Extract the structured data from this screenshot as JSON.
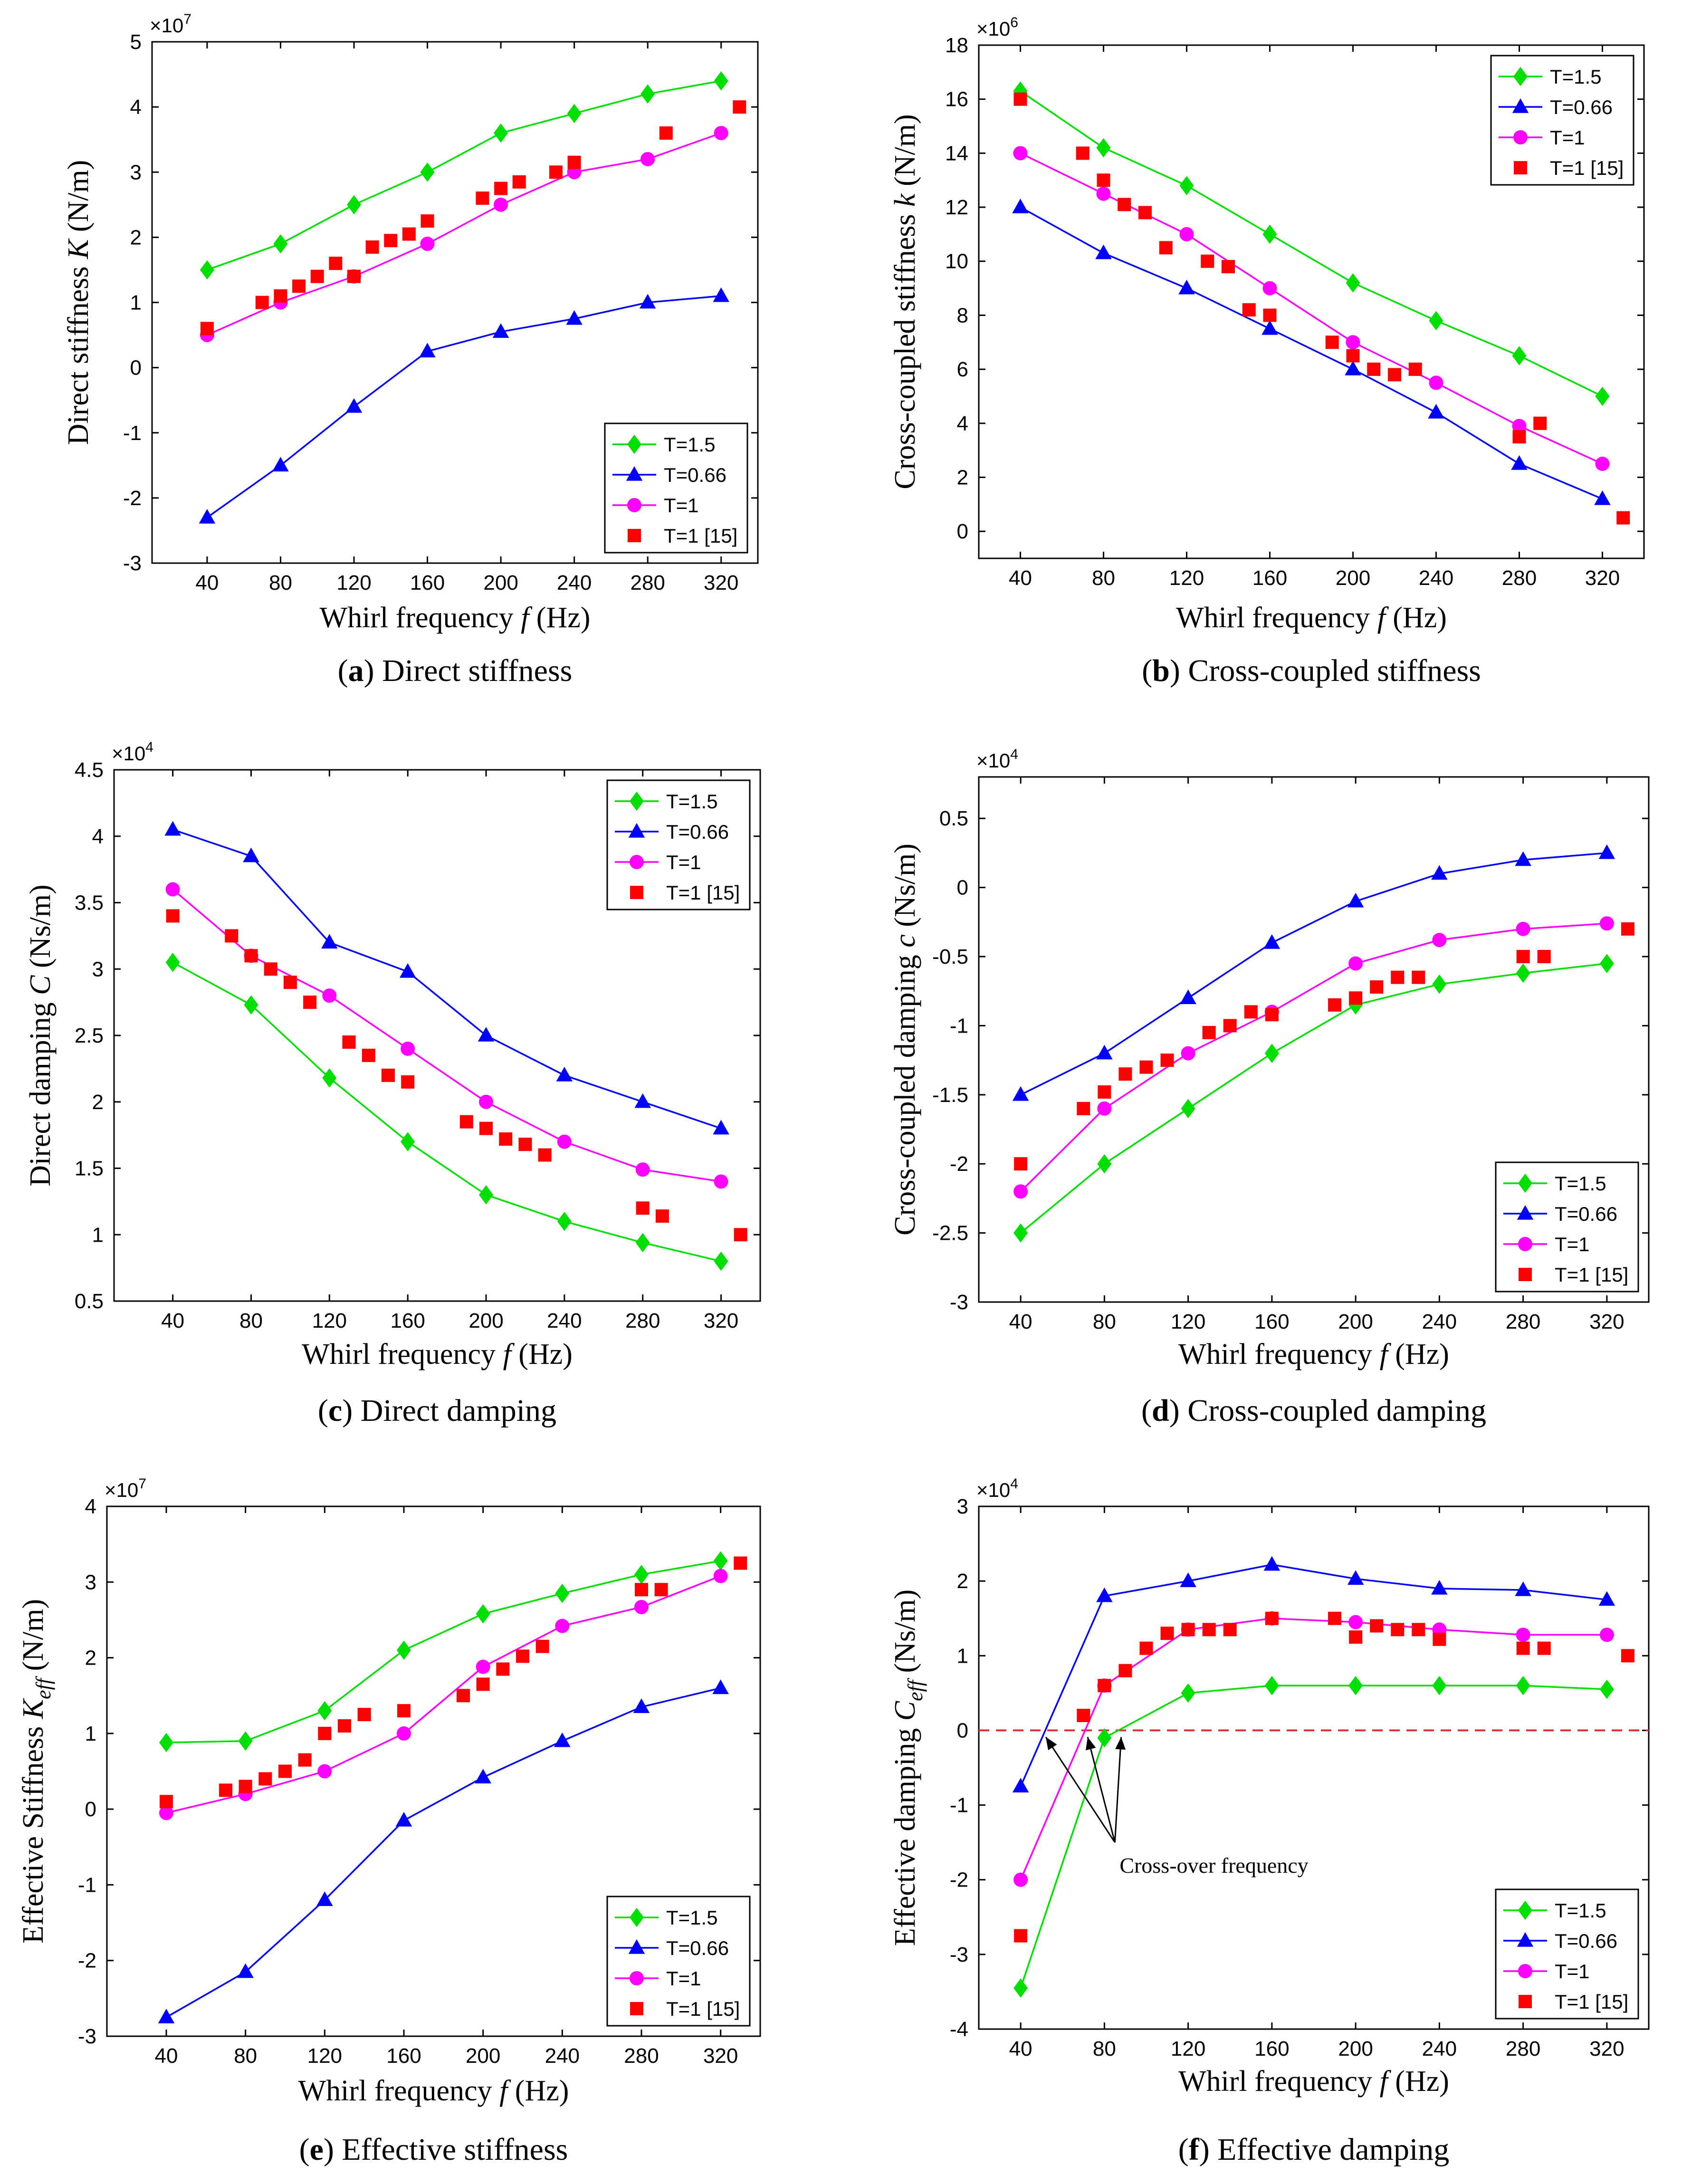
{
  "chart_data": [
    {
      "id": "a",
      "type": "line",
      "caption_letter": "a",
      "caption_title": "Direct stiffness",
      "xlabel_main": "Whirl frequency ",
      "xlabel_italic": "f",
      "xlabel_unit": " (Hz)",
      "ylabel_main": "Direct stiffness ",
      "ylabel_italic": "K",
      "ylabel_sub": "",
      "ylabel_unit": " (N/m)",
      "exp_text": "×10",
      "exp_sup": "7",
      "xticks": [
        "40",
        "80",
        "120",
        "160",
        "200",
        "240",
        "280",
        "320"
      ],
      "yticks": [
        "-3",
        "-2",
        "-1",
        "0",
        "1",
        "2",
        "3",
        "4",
        "5"
      ],
      "ylim": [
        -3,
        5
      ],
      "xlim": [
        10,
        340
      ],
      "legend_position": "bottom-right",
      "series": [
        {
          "name": "T=1.5",
          "x": [
            40,
            80,
            120,
            160,
            200,
            240,
            280,
            320
          ],
          "y": [
            1.5,
            1.9,
            2.5,
            3.0,
            3.6,
            3.9,
            4.2,
            4.4
          ]
        },
        {
          "name": "T=0.66",
          "x": [
            40,
            80,
            120,
            160,
            200,
            240,
            280,
            320
          ],
          "y": [
            -2.3,
            -1.5,
            -0.6,
            0.25,
            0.55,
            0.75,
            1.0,
            1.1
          ]
        },
        {
          "name": "T=1",
          "x": [
            40,
            80,
            120,
            160,
            200,
            240,
            280,
            320
          ],
          "y": [
            0.5,
            1.0,
            1.4,
            1.9,
            2.5,
            3.0,
            3.2,
            3.6
          ]
        },
        {
          "name": "T=1 [15]",
          "x": [
            40,
            70,
            80,
            90,
            100,
            110,
            120,
            130,
            140,
            150,
            160,
            190,
            200,
            210,
            230,
            240,
            290,
            330
          ],
          "y": [
            0.6,
            1.0,
            1.1,
            1.25,
            1.4,
            1.6,
            1.4,
            1.85,
            1.95,
            2.05,
            2.25,
            2.6,
            2.75,
            2.85,
            3.0,
            3.15,
            3.6,
            4.0
          ]
        }
      ]
    },
    {
      "id": "b",
      "type": "line",
      "caption_letter": "b",
      "caption_title": "Cross-coupled stiffness",
      "xlabel_main": "Whirl frequency ",
      "xlabel_italic": "f",
      "xlabel_unit": " (Hz)",
      "ylabel_main": "Cross-coupled stiffness ",
      "ylabel_italic": "k",
      "ylabel_sub": "",
      "ylabel_unit": " (N/m)",
      "exp_text": "×10",
      "exp_sup": "6",
      "xticks": [
        "40",
        "80",
        "120",
        "160",
        "200",
        "240",
        "280",
        "320"
      ],
      "yticks": [
        "0",
        "2",
        "4",
        "6",
        "8",
        "10",
        "12",
        "14",
        "16",
        "18"
      ],
      "ylim": [
        -1,
        18
      ],
      "xlim": [
        20,
        340
      ],
      "legend_position": "top-right",
      "series": [
        {
          "name": "T=1.5",
          "x": [
            40,
            80,
            120,
            160,
            200,
            240,
            280,
            320
          ],
          "y": [
            16.3,
            14.2,
            12.8,
            11.0,
            9.2,
            7.8,
            6.5,
            5.0
          ]
        },
        {
          "name": "T=0.66",
          "x": [
            40,
            80,
            120,
            160,
            200,
            240,
            280,
            320
          ],
          "y": [
            12.0,
            10.3,
            9.0,
            7.5,
            6.0,
            4.4,
            2.5,
            1.2
          ]
        },
        {
          "name": "T=1",
          "x": [
            40,
            80,
            120,
            160,
            200,
            240,
            280,
            320
          ],
          "y": [
            14.0,
            12.5,
            11.0,
            9.0,
            7.0,
            5.5,
            3.9,
            2.5
          ]
        },
        {
          "name": "T=1 [15]",
          "x": [
            40,
            70,
            80,
            90,
            100,
            110,
            130,
            140,
            150,
            160,
            190,
            200,
            210,
            220,
            230,
            280,
            290,
            330
          ],
          "y": [
            16.0,
            14.0,
            13.0,
            12.1,
            11.8,
            10.5,
            10.0,
            9.8,
            8.2,
            8.0,
            7.0,
            6.5,
            6.0,
            5.8,
            6.0,
            3.5,
            4.0,
            0.5
          ]
        }
      ]
    },
    {
      "id": "c",
      "type": "line",
      "caption_letter": "c",
      "caption_title": "Direct damping",
      "xlabel_main": "Whirl frequency ",
      "xlabel_italic": "f",
      "xlabel_unit": " (Hz)",
      "ylabel_main": "Direct damping ",
      "ylabel_italic": "C",
      "ylabel_sub": "",
      "ylabel_unit": " (Ns/m)",
      "exp_text": "×10",
      "exp_sup": "4",
      "xticks": [
        "40",
        "80",
        "120",
        "160",
        "200",
        "240",
        "280",
        "320"
      ],
      "yticks": [
        "0.5",
        "1",
        "1.5",
        "2",
        "2.5",
        "3",
        "3.5",
        "4",
        "4.5"
      ],
      "ylim": [
        0.5,
        4.5
      ],
      "xlim": [
        10,
        340
      ],
      "legend_position": "top-right",
      "series": [
        {
          "name": "T=1.5",
          "x": [
            40,
            80,
            120,
            160,
            200,
            240,
            280,
            320
          ],
          "y": [
            3.05,
            2.73,
            2.18,
            1.7,
            1.3,
            1.1,
            0.94,
            0.8
          ]
        },
        {
          "name": "T=0.66",
          "x": [
            40,
            80,
            120,
            160,
            200,
            240,
            280,
            320
          ],
          "y": [
            4.05,
            3.85,
            3.2,
            2.98,
            2.5,
            2.2,
            2.0,
            1.8
          ]
        },
        {
          "name": "T=1",
          "x": [
            40,
            80,
            120,
            160,
            200,
            240,
            280,
            320
          ],
          "y": [
            3.6,
            3.1,
            2.8,
            2.4,
            2.0,
            1.7,
            1.49,
            1.4
          ]
        },
        {
          "name": "T=1 [15]",
          "x": [
            40,
            70,
            80,
            90,
            100,
            110,
            130,
            140,
            150,
            160,
            190,
            200,
            210,
            220,
            230,
            280,
            290,
            330
          ],
          "y": [
            3.4,
            3.25,
            3.1,
            3.0,
            2.9,
            2.75,
            2.45,
            2.35,
            2.2,
            2.15,
            1.85,
            1.8,
            1.72,
            1.68,
            1.6,
            1.2,
            1.14,
            1.0
          ]
        }
      ]
    },
    {
      "id": "d",
      "type": "line",
      "caption_letter": "d",
      "caption_title": "Cross-coupled damping",
      "xlabel_main": "Whirl frequency ",
      "xlabel_italic": "f",
      "xlabel_unit": " (Hz)",
      "ylabel_main": "Cross-coupled damping ",
      "ylabel_italic": "c",
      "ylabel_sub": "",
      "ylabel_unit": " (Ns/m)",
      "exp_text": "×10",
      "exp_sup": "4",
      "xticks": [
        "40",
        "80",
        "120",
        "160",
        "200",
        "240",
        "280",
        "320"
      ],
      "yticks": [
        "-3",
        "-2.5",
        "-2",
        "-1.5",
        "-1",
        "-0.5",
        "0",
        "0.5"
      ],
      "ylim": [
        -3,
        0.8
      ],
      "xlim": [
        20,
        340
      ],
      "legend_position": "bottom-right",
      "series": [
        {
          "name": "T=1.5",
          "x": [
            40,
            80,
            120,
            160,
            200,
            240,
            280,
            320
          ],
          "y": [
            -2.5,
            -2.0,
            -1.6,
            -1.2,
            -0.85,
            -0.7,
            -0.62,
            -0.55
          ]
        },
        {
          "name": "T=0.66",
          "x": [
            40,
            80,
            120,
            160,
            200,
            240,
            280,
            320
          ],
          "y": [
            -1.5,
            -1.2,
            -0.8,
            -0.4,
            -0.1,
            0.1,
            0.2,
            0.25
          ]
        },
        {
          "name": "T=1",
          "x": [
            40,
            80,
            120,
            160,
            200,
            240,
            280,
            320
          ],
          "y": [
            -2.2,
            -1.6,
            -1.2,
            -0.9,
            -0.55,
            -0.38,
            -0.3,
            -0.26
          ]
        },
        {
          "name": "T=1 [15]",
          "x": [
            40,
            70,
            80,
            90,
            100,
            110,
            130,
            140,
            150,
            160,
            190,
            200,
            210,
            220,
            230,
            280,
            290,
            330
          ],
          "y": [
            -2.0,
            -1.6,
            -1.48,
            -1.35,
            -1.3,
            -1.25,
            -1.05,
            -1.0,
            -0.9,
            -0.92,
            -0.85,
            -0.8,
            -0.72,
            -0.65,
            -0.65,
            -0.5,
            -0.5,
            -0.3
          ]
        }
      ]
    },
    {
      "id": "e",
      "type": "line",
      "caption_letter": "e",
      "caption_title": "Effective stiffness",
      "xlabel_main": "Whirl frequency ",
      "xlabel_italic": "f",
      "xlabel_unit": " (Hz)",
      "ylabel_main": "Effective Stiffness ",
      "ylabel_italic": "K",
      "ylabel_sub": "eff",
      "ylabel_unit": " (N/m)",
      "exp_text": "×10",
      "exp_sup": "7",
      "xticks": [
        "40",
        "80",
        "120",
        "160",
        "200",
        "240",
        "280",
        "320"
      ],
      "yticks": [
        "-3",
        "-2",
        "-1",
        "0",
        "1",
        "2",
        "3",
        "4"
      ],
      "ylim": [
        -3,
        4
      ],
      "xlim": [
        10,
        340
      ],
      "legend_position": "bottom-right",
      "series": [
        {
          "name": "T=1.5",
          "x": [
            40,
            80,
            120,
            160,
            200,
            240,
            280,
            320
          ],
          "y": [
            0.88,
            0.9,
            1.3,
            2.1,
            2.58,
            2.85,
            3.1,
            3.28
          ]
        },
        {
          "name": "T=0.66",
          "x": [
            40,
            80,
            120,
            160,
            200,
            240,
            280,
            320
          ],
          "y": [
            -2.75,
            -2.15,
            -1.2,
            -0.15,
            0.42,
            0.9,
            1.35,
            1.6
          ]
        },
        {
          "name": "T=1",
          "x": [
            40,
            80,
            120,
            160,
            200,
            240,
            280,
            320
          ],
          "y": [
            -0.05,
            0.2,
            0.5,
            1.0,
            1.88,
            2.42,
            2.67,
            3.08
          ]
        },
        {
          "name": "T=1 [15]",
          "x": [
            40,
            70,
            80,
            90,
            100,
            110,
            120,
            130,
            140,
            160,
            190,
            200,
            210,
            220,
            230,
            280,
            290,
            330
          ],
          "y": [
            0.1,
            0.25,
            0.3,
            0.4,
            0.5,
            0.65,
            1.0,
            1.1,
            1.25,
            1.3,
            1.5,
            1.65,
            1.85,
            2.02,
            2.15,
            2.9,
            2.9,
            3.25
          ]
        }
      ]
    },
    {
      "id": "f",
      "type": "line",
      "caption_letter": "f",
      "caption_title": "Effective damping",
      "xlabel_main": "Whirl frequency ",
      "xlabel_italic": "f",
      "xlabel_unit": " (Hz)",
      "ylabel_main": "Effective damping ",
      "ylabel_italic": "C",
      "ylabel_sub": "eff",
      "ylabel_unit": " (Ns/m)",
      "exp_text": "×10",
      "exp_sup": "4",
      "xticks": [
        "40",
        "80",
        "120",
        "160",
        "200",
        "240",
        "280",
        "320"
      ],
      "yticks": [
        "-4",
        "-3",
        "-2",
        "-1",
        "0",
        "1",
        "2",
        "3"
      ],
      "ylim": [
        -4,
        3
      ],
      "xlim": [
        20,
        340
      ],
      "legend_position": "bottom-right",
      "reference_line_y": 0,
      "annotation": {
        "text": "Cross-over frequency",
        "targets_x": [
          52,
          72,
          88
        ],
        "target_y": 0,
        "anchor_x": 85,
        "anchor_y": -1.5
      },
      "series": [
        {
          "name": "T=1.5",
          "x": [
            40,
            80,
            120,
            160,
            200,
            240,
            280,
            320
          ],
          "y": [
            -3.45,
            -0.1,
            0.5,
            0.6,
            0.6,
            0.6,
            0.6,
            0.55
          ]
        },
        {
          "name": "T=0.66",
          "x": [
            40,
            80,
            120,
            160,
            200,
            240,
            280,
            320
          ],
          "y": [
            -0.75,
            1.8,
            2.0,
            2.22,
            2.03,
            1.9,
            1.88,
            1.75
          ]
        },
        {
          "name": "T=1",
          "x": [
            40,
            80,
            120,
            160,
            200,
            240,
            280,
            320
          ],
          "y": [
            -2.0,
            0.6,
            1.35,
            1.5,
            1.45,
            1.35,
            1.28,
            1.28
          ]
        },
        {
          "name": "T=1 [15]",
          "x": [
            40,
            70,
            80,
            90,
            100,
            110,
            120,
            130,
            140,
            160,
            190,
            200,
            210,
            220,
            230,
            240,
            280,
            290,
            330
          ],
          "y": [
            -2.75,
            0.2,
            0.6,
            0.8,
            1.1,
            1.3,
            1.35,
            1.35,
            1.35,
            1.5,
            1.5,
            1.25,
            1.4,
            1.35,
            1.35,
            1.22,
            1.1,
            1.1,
            1.0
          ]
        }
      ]
    }
  ],
  "colors": {
    "T=1.5": "#00e000",
    "T=0.66": "#0000ff",
    "T=1": "#ff00ff",
    "T=1 [15]": "#ff0000",
    "reference_line": "#e03030"
  },
  "markers": {
    "T=1.5": "diamond",
    "T=0.66": "triangle",
    "T=1": "circle",
    "T=1 [15]": "square"
  }
}
